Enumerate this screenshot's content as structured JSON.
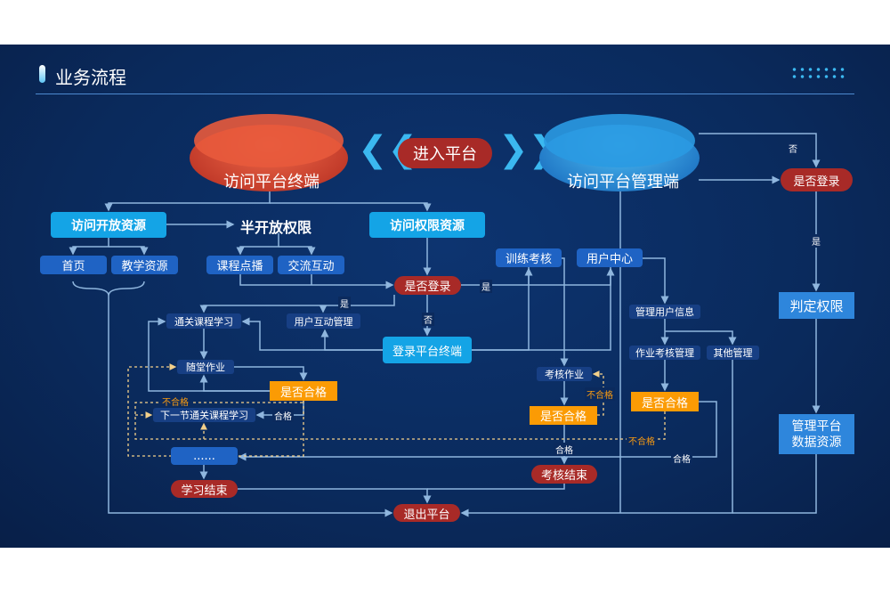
{
  "header": {
    "title": "业务流程"
  },
  "colors": {
    "background": "#0a2a5c",
    "cyan": "#14a4e6",
    "blue": "#1f63c4",
    "red": "#a82a27",
    "orange": "#fb9b04",
    "line": "#8fb6de"
  },
  "platforms": {
    "terminal": "访问平台终端",
    "enter": "进入平台",
    "admin": "访问平台管理端"
  },
  "nodes": {
    "open_res": "访问开放资源",
    "semi": "半开放权限",
    "auth_res": "访问权限资源",
    "home": "首页",
    "teach_res": "教学资源",
    "vod": "课程点播",
    "interact": "交流互动",
    "login_q": "是否登录",
    "train": "训练考核",
    "user_center": "用户中心",
    "course_study": "通关课程学习",
    "user_interact_mgmt": "用户互动管理",
    "login_terminal": "登录平台终端",
    "homework": "随堂作业",
    "pass_q1": "是否合格",
    "next_course": "下一节通关课程学习",
    "more": "......",
    "study_end": "学习结束",
    "exit": "退出平台",
    "exam_hw": "考核作业",
    "pass_q2": "是否合格",
    "exam_end": "考核结束",
    "manage_user": "管理用户信息",
    "hw_exam_mgmt": "作业考核管理",
    "other_mgmt": "其他管理",
    "pass_q3": "是否合格",
    "admin_login_q": "是否登录",
    "judge": "判定权限",
    "admin_data": "管理平台数据资源"
  },
  "labels": {
    "yes": "是",
    "no": "否",
    "pass": "合格",
    "fail": "不合格"
  }
}
